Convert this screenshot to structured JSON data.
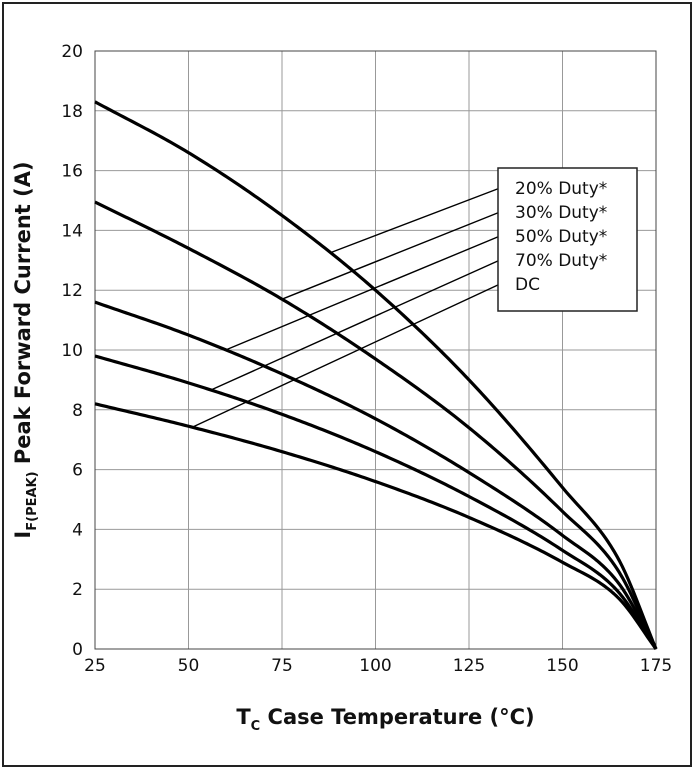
{
  "chart_data": {
    "type": "line",
    "xlabel_main": "T",
    "xlabel_sub": "C",
    "xlabel_rest": " Case Temperature (°C)",
    "ylabel_main": "I",
    "ylabel_sub": "F(PEAK)",
    "ylabel_rest": " Peak Forward Current (A)",
    "xlim": [
      25,
      175
    ],
    "ylim": [
      0,
      20
    ],
    "xticks": [
      "25",
      "50",
      "75",
      "100",
      "125",
      "150",
      "175"
    ],
    "yticks": [
      "0",
      "2",
      "4",
      "6",
      "8",
      "10",
      "12",
      "14",
      "16",
      "18",
      "20"
    ],
    "grid": true,
    "legend_placement": "upper-right",
    "series": [
      {
        "name": "20% Duty*",
        "x": [
          25,
          50,
          75,
          100,
          125,
          150,
          165,
          175
        ],
        "y": [
          18.3,
          16.6,
          14.5,
          12.0,
          9.0,
          5.4,
          3.0,
          0
        ]
      },
      {
        "name": "30% Duty*",
        "x": [
          25,
          50,
          75,
          100,
          125,
          150,
          165,
          175
        ],
        "y": [
          14.95,
          13.4,
          11.7,
          9.7,
          7.4,
          4.6,
          2.6,
          0
        ]
      },
      {
        "name": "50% Duty*",
        "x": [
          25,
          50,
          75,
          100,
          125,
          150,
          165,
          175
        ],
        "y": [
          11.6,
          10.5,
          9.2,
          7.7,
          5.9,
          3.8,
          2.2,
          0
        ]
      },
      {
        "name": "70% Duty*",
        "x": [
          25,
          50,
          75,
          100,
          125,
          150,
          165,
          175
        ],
        "y": [
          9.8,
          8.9,
          7.85,
          6.6,
          5.1,
          3.3,
          1.9,
          0
        ]
      },
      {
        "name": "DC",
        "x": [
          25,
          50,
          75,
          100,
          125,
          150,
          165,
          175
        ],
        "y": [
          8.2,
          7.45,
          6.6,
          5.6,
          4.4,
          2.9,
          1.7,
          0
        ]
      }
    ],
    "leaders": [
      {
        "series": "20% Duty*",
        "x": 88
      },
      {
        "series": "30% Duty*",
        "x": 75
      },
      {
        "series": "50% Duty*",
        "x": 60
      },
      {
        "series": "70% Duty*",
        "x": 56
      },
      {
        "series": "DC",
        "x": 51
      }
    ]
  }
}
